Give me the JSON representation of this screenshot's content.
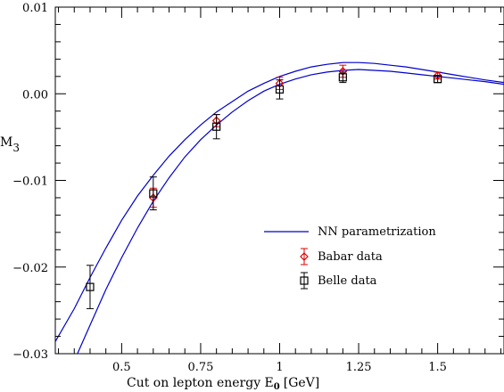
{
  "chart_data": {
    "type": "line",
    "xlabel": "Cut on lepton energy E",
    "xlabel_sub": "0",
    "xlabel_unit": "[GeV]",
    "ylabel": "M",
    "ylabel_sub": "3",
    "xlim": [
      0.29,
      1.71
    ],
    "ylim": [
      -0.03,
      0.01
    ],
    "x_ticks": [
      {
        "v": 0.5,
        "label": "0.5"
      },
      {
        "v": 0.75,
        "label": "0.75"
      },
      {
        "v": 1.0,
        "label": "1"
      },
      {
        "v": 1.25,
        "label": "1.25"
      },
      {
        "v": 1.5,
        "label": "1.5"
      }
    ],
    "y_ticks": [
      {
        "v": 0.01,
        "label": "0.01"
      },
      {
        "v": 0.0,
        "label": "0.00"
      },
      {
        "v": -0.01,
        "label": "−0.01"
      },
      {
        "v": -0.02,
        "label": "−0.02"
      },
      {
        "v": -0.03,
        "label": "−0.03"
      }
    ],
    "band": {
      "name": "NN parametrization",
      "color": "#0000cc",
      "upper": [
        [
          0.29,
          -0.0286
        ],
        [
          0.35,
          -0.0248
        ],
        [
          0.4,
          -0.0212
        ],
        [
          0.45,
          -0.0178
        ],
        [
          0.5,
          -0.0146
        ],
        [
          0.55,
          -0.0118
        ],
        [
          0.6,
          -0.0094
        ],
        [
          0.65,
          -0.0072
        ],
        [
          0.7,
          -0.0053
        ],
        [
          0.75,
          -0.0036
        ],
        [
          0.8,
          -0.0021
        ],
        [
          0.85,
          -0.0009
        ],
        [
          0.9,
          0.0003
        ],
        [
          0.95,
          0.0012
        ],
        [
          1.0,
          0.002
        ],
        [
          1.05,
          0.0026
        ],
        [
          1.1,
          0.0031
        ],
        [
          1.15,
          0.0034
        ],
        [
          1.2,
          0.0036
        ],
        [
          1.25,
          0.0036
        ],
        [
          1.3,
          0.0035
        ],
        [
          1.35,
          0.0033
        ],
        [
          1.4,
          0.0031
        ],
        [
          1.45,
          0.0028
        ],
        [
          1.5,
          0.0025
        ],
        [
          1.55,
          0.0022
        ],
        [
          1.6,
          0.0019
        ],
        [
          1.65,
          0.0016
        ],
        [
          1.71,
          0.0013
        ]
      ],
      "lower": [
        [
          0.36,
          -0.0302
        ],
        [
          0.4,
          -0.0267
        ],
        [
          0.45,
          -0.0226
        ],
        [
          0.5,
          -0.0189
        ],
        [
          0.55,
          -0.0155
        ],
        [
          0.6,
          -0.0124
        ],
        [
          0.65,
          -0.0097
        ],
        [
          0.7,
          -0.0073
        ],
        [
          0.75,
          -0.0053
        ],
        [
          0.8,
          -0.0036
        ],
        [
          0.85,
          -0.0021
        ],
        [
          0.9,
          -0.0008
        ],
        [
          0.95,
          0.0003
        ],
        [
          1.0,
          0.0011
        ],
        [
          1.05,
          0.0017
        ],
        [
          1.1,
          0.0022
        ],
        [
          1.15,
          0.0025
        ],
        [
          1.2,
          0.0027
        ],
        [
          1.25,
          0.0028
        ],
        [
          1.3,
          0.0027
        ],
        [
          1.35,
          0.0026
        ],
        [
          1.4,
          0.0024
        ],
        [
          1.45,
          0.0022
        ],
        [
          1.5,
          0.002
        ],
        [
          1.55,
          0.0018
        ],
        [
          1.6,
          0.0016
        ],
        [
          1.65,
          0.0014
        ],
        [
          1.71,
          0.0011
        ]
      ]
    },
    "series": [
      {
        "name": "Babar data",
        "color": "#dd0000",
        "marker": "diamond",
        "points": [
          {
            "x": 0.6,
            "y": -0.012,
            "err": 0.0011
          },
          {
            "x": 0.8,
            "y": -0.0031,
            "err": 0.0007
          },
          {
            "x": 1.0,
            "y": 0.0012,
            "err": 0.0007
          },
          {
            "x": 1.2,
            "y": 0.0026,
            "err": 0.0007
          },
          {
            "x": 1.5,
            "y": 0.0021,
            "err": 0.0004
          }
        ]
      },
      {
        "name": "Belle data",
        "color": "#000000",
        "marker": "square",
        "points": [
          {
            "x": 0.4,
            "y": -0.0223,
            "err": 0.0025
          },
          {
            "x": 0.6,
            "y": -0.0115,
            "err": 0.0019
          },
          {
            "x": 0.8,
            "y": -0.0038,
            "err": 0.0014
          },
          {
            "x": 1.0,
            "y": 0.0005,
            "err": 0.0011
          },
          {
            "x": 1.2,
            "y": 0.0019,
            "err": 0.0006
          },
          {
            "x": 1.5,
            "y": 0.0017,
            "err": 0.0004
          }
        ]
      }
    ],
    "legend_position": "center-right",
    "grid": false
  }
}
